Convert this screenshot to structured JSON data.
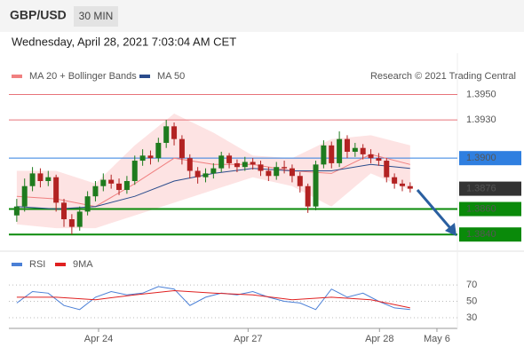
{
  "header": {
    "symbol": "GBP/USD",
    "interval": "30 MIN",
    "timestamp": "Wednesday, April 28, 2021 7:03:04 AM CET"
  },
  "chart_data": [
    {
      "type": "candlestick",
      "credit": "Research © 2021 Trading Central",
      "xlim": [
        -1,
        56
      ],
      "ylim": [
        1.3829,
        1.3958
      ],
      "up_color": "#1e7b1e",
      "down_color": "#b22222",
      "candles": {
        "x": [
          0,
          1,
          2,
          3,
          4,
          5,
          6,
          7,
          8,
          9,
          10,
          11,
          12,
          13,
          14,
          15,
          16,
          17,
          18,
          19,
          20,
          21,
          22,
          23,
          24,
          25,
          26,
          27,
          28,
          29,
          30,
          31,
          32,
          33,
          34,
          35,
          36,
          37,
          38,
          39,
          40,
          41,
          42,
          43,
          44,
          45,
          46,
          47,
          48,
          49,
          50
        ],
        "open": [
          1.3855,
          1.3862,
          1.3878,
          1.3888,
          1.3882,
          1.3885,
          1.3865,
          1.3852,
          1.3846,
          1.3858,
          1.387,
          1.3878,
          1.3883,
          1.388,
          1.3875,
          1.3882,
          1.3898,
          1.3902,
          1.39,
          1.3912,
          1.3925,
          1.3915,
          1.39,
          1.389,
          1.3885,
          1.3888,
          1.3892,
          1.3902,
          1.3896,
          1.3893,
          1.3897,
          1.3895,
          1.389,
          1.3886,
          1.3893,
          1.3892,
          1.3886,
          1.3878,
          1.3862,
          1.3895,
          1.391,
          1.3896,
          1.3915,
          1.3905,
          1.3908,
          1.3903,
          1.39,
          1.3898,
          1.3885,
          1.388,
          1.3878
        ],
        "high": [
          1.3868,
          1.3884,
          1.3893,
          1.3892,
          1.389,
          1.3887,
          1.3868,
          1.3856,
          1.3862,
          1.3874,
          1.3882,
          1.3888,
          1.3887,
          1.3884,
          1.3886,
          1.3902,
          1.3907,
          1.3906,
          1.3916,
          1.393,
          1.3928,
          1.3918,
          1.3903,
          1.3893,
          1.3892,
          1.3896,
          1.3905,
          1.3904,
          1.3899,
          1.3901,
          1.39,
          1.3898,
          1.3893,
          1.3897,
          1.3898,
          1.3895,
          1.3889,
          1.388,
          1.3898,
          1.3914,
          1.3913,
          1.3921,
          1.3918,
          1.3912,
          1.3911,
          1.3907,
          1.3904,
          1.39,
          1.3888,
          1.3883,
          1.3881
        ],
        "low": [
          1.385,
          1.3858,
          1.3874,
          1.3877,
          1.3878,
          1.3858,
          1.3846,
          1.384,
          1.3843,
          1.3855,
          1.3866,
          1.3874,
          1.3876,
          1.3871,
          1.3872,
          1.3879,
          1.3894,
          1.3895,
          1.3897,
          1.3908,
          1.391,
          1.3895,
          1.3884,
          1.388,
          1.3881,
          1.3884,
          1.3889,
          1.3892,
          1.3889,
          1.389,
          1.3891,
          1.3886,
          1.3882,
          1.3883,
          1.3888,
          1.3881,
          1.3873,
          1.3857,
          1.3859,
          1.3892,
          1.3892,
          1.3893,
          1.39,
          1.3901,
          1.3899,
          1.3896,
          1.3894,
          1.3881,
          1.3876,
          1.3874,
          1.3873
        ],
        "close": [
          1.3862,
          1.3878,
          1.3888,
          1.3882,
          1.3885,
          1.3865,
          1.3852,
          1.3846,
          1.3858,
          1.387,
          1.3878,
          1.3883,
          1.388,
          1.3875,
          1.3882,
          1.3898,
          1.3902,
          1.39,
          1.3912,
          1.3925,
          1.3915,
          1.39,
          1.389,
          1.3885,
          1.3888,
          1.3892,
          1.3902,
          1.3896,
          1.3893,
          1.3897,
          1.3895,
          1.389,
          1.3886,
          1.3893,
          1.3892,
          1.3886,
          1.3878,
          1.3862,
          1.3895,
          1.391,
          1.3896,
          1.3915,
          1.3905,
          1.3908,
          1.3903,
          1.39,
          1.3898,
          1.3885,
          1.388,
          1.3878,
          1.3876
        ]
      },
      "series": [
        {
          "name": "MA 20 + Bollinger Bands",
          "color": "#f08080",
          "band_color": "#fde3e3",
          "x": [
            0,
            5,
            10,
            15,
            20,
            25,
            30,
            35,
            40,
            45,
            50
          ],
          "values": [
            1.387,
            1.3868,
            1.3862,
            1.388,
            1.39,
            1.3895,
            1.3895,
            1.389,
            1.3888,
            1.3903,
            1.3895
          ],
          "upper": [
            1.389,
            1.389,
            1.388,
            1.391,
            1.3935,
            1.392,
            1.3902,
            1.39,
            1.3915,
            1.3918,
            1.391
          ],
          "lower": [
            1.3848,
            1.3845,
            1.3845,
            1.3855,
            1.3865,
            1.3875,
            1.3885,
            1.3878,
            1.3862,
            1.3888,
            1.3875
          ]
        },
        {
          "name": "MA 50",
          "color": "#2b4c8c",
          "x": [
            0,
            5,
            10,
            15,
            20,
            25,
            30,
            35,
            40,
            45,
            50
          ],
          "values": [
            1.3862,
            1.386,
            1.3862,
            1.387,
            1.3882,
            1.3888,
            1.3892,
            1.389,
            1.389,
            1.3895,
            1.3892
          ]
        }
      ],
      "levels": [
        {
          "value": 1.395,
          "label": "1.3950",
          "color": "#e8737a",
          "text_color": "#d42020",
          "boxed": false,
          "line": true
        },
        {
          "value": 1.393,
          "label": "1.3930",
          "color": "#e8737a",
          "text_color": "#d42020",
          "boxed": false,
          "line": true
        },
        {
          "value": 1.39,
          "label": "1.3900",
          "color": "#2f7fe0",
          "text_color": "#ffffff",
          "boxed": true,
          "line": true
        },
        {
          "value": 1.3876,
          "label": "1.3876",
          "color": "#333333",
          "text_color": "#ffffff",
          "boxed": true,
          "line": false
        },
        {
          "value": 1.386,
          "label": "1.3860",
          "color": "#0a8a0a",
          "text_color": "#ffffff",
          "boxed": true,
          "line": true
        },
        {
          "value": 1.384,
          "label": "1.3840",
          "color": "#0a8a0a",
          "text_color": "#ffffff",
          "boxed": true,
          "line": true
        }
      ]
    },
    {
      "type": "line",
      "xlim": [
        -1,
        56
      ],
      "ylim": [
        17,
        95
      ],
      "yticks": [
        70,
        50,
        30
      ],
      "xticks": [
        {
          "value": 10.4,
          "label": "Apr 24"
        },
        {
          "value": 29.4,
          "label": "Apr 27"
        },
        {
          "value": 46.1,
          "label": "Apr 28"
        },
        {
          "value": 53.4,
          "label": "May 6"
        }
      ],
      "series": [
        {
          "name": "RSI",
          "color": "#4a7fd6",
          "x": [
            0,
            2,
            4,
            6,
            8,
            10,
            12,
            14,
            16,
            18,
            20,
            22,
            24,
            26,
            28,
            30,
            32,
            34,
            36,
            38,
            40,
            42,
            44,
            46,
            48,
            50
          ],
          "values": [
            48,
            62,
            60,
            45,
            40,
            55,
            62,
            58,
            60,
            68,
            65,
            45,
            55,
            60,
            58,
            62,
            55,
            50,
            48,
            40,
            65,
            55,
            60,
            50,
            42,
            40
          ]
        },
        {
          "name": "9MA",
          "color": "#e02020",
          "x": [
            0,
            5,
            10,
            15,
            20,
            25,
            30,
            35,
            40,
            45,
            50
          ],
          "values": [
            55,
            55,
            52,
            58,
            63,
            60,
            58,
            52,
            55,
            52,
            42
          ]
        }
      ]
    }
  ]
}
